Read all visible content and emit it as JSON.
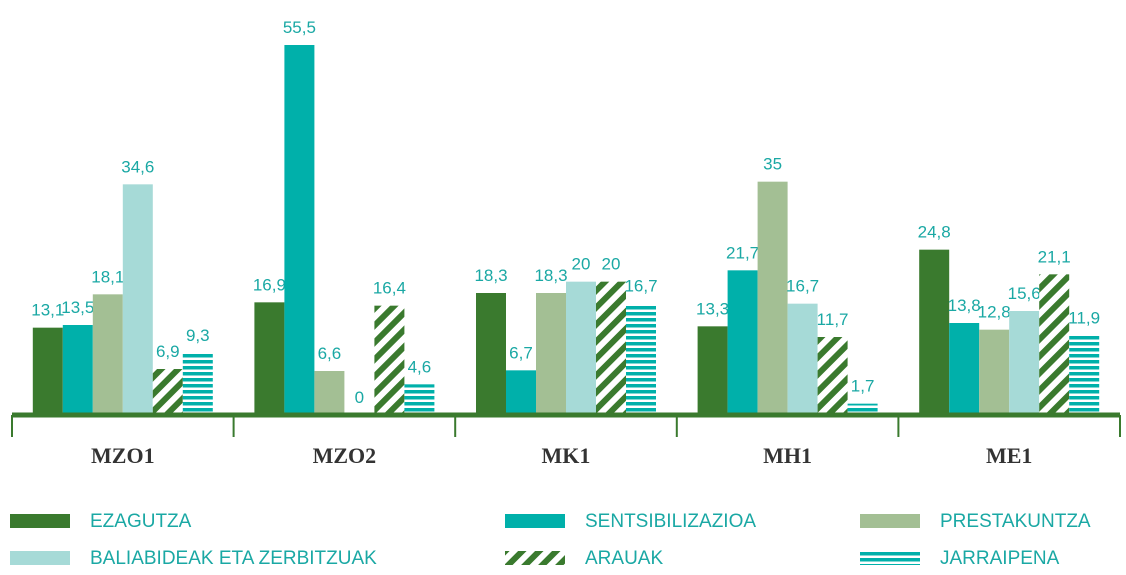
{
  "chart_data": {
    "type": "bar",
    "categories": [
      "MZO1",
      "MZO2",
      "MK1",
      "MH1",
      "ME1"
    ],
    "ylim": [
      0,
      60
    ],
    "series": [
      {
        "name": "EZAGUTZA",
        "color": "#3a7a2e",
        "values": [
          13.1,
          16.9,
          18.3,
          13.3,
          24.8
        ],
        "value_labels": [
          "13,1",
          "16,9",
          "18,3",
          "13,3",
          "24,8"
        ]
      },
      {
        "name": "SENTSIBILIZAZIOA",
        "color": "#00b0aa",
        "values": [
          13.5,
          55.5,
          6.7,
          21.7,
          13.8
        ],
        "value_labels": [
          "13,5",
          "55,5",
          "6,7",
          "21,7",
          "13,8"
        ]
      },
      {
        "name": "PRESTAKUNTZA",
        "color": "#a3bf94",
        "values": [
          18.1,
          6.6,
          18.3,
          35,
          12.8
        ],
        "value_labels": [
          "18,1",
          "6,6",
          "18,3",
          "35",
          "12,8"
        ]
      },
      {
        "name": "BALIABIDEAK ETA ZERBITZUAK",
        "color": "#a6dad7",
        "values": [
          34.6,
          0,
          20,
          16.7,
          15.6
        ],
        "value_labels": [
          "34,6",
          "0",
          "20",
          "16,7",
          "15,6"
        ]
      },
      {
        "name": "ARAUAK",
        "color": "#3a7a2e",
        "pattern": "diagonal",
        "values": [
          6.9,
          16.4,
          20,
          11.7,
          21.1
        ],
        "value_labels": [
          "6,9",
          "16,4",
          "20",
          "11,7",
          "21,1"
        ]
      },
      {
        "name": "JARRAIPENA",
        "color": "#00b0aa",
        "pattern": "horizontal",
        "values": [
          9.3,
          4.6,
          16.7,
          1.7,
          11.9
        ],
        "value_labels": [
          "9,3",
          "4,6",
          "16,7",
          "1,7",
          "11,9"
        ]
      }
    ]
  }
}
